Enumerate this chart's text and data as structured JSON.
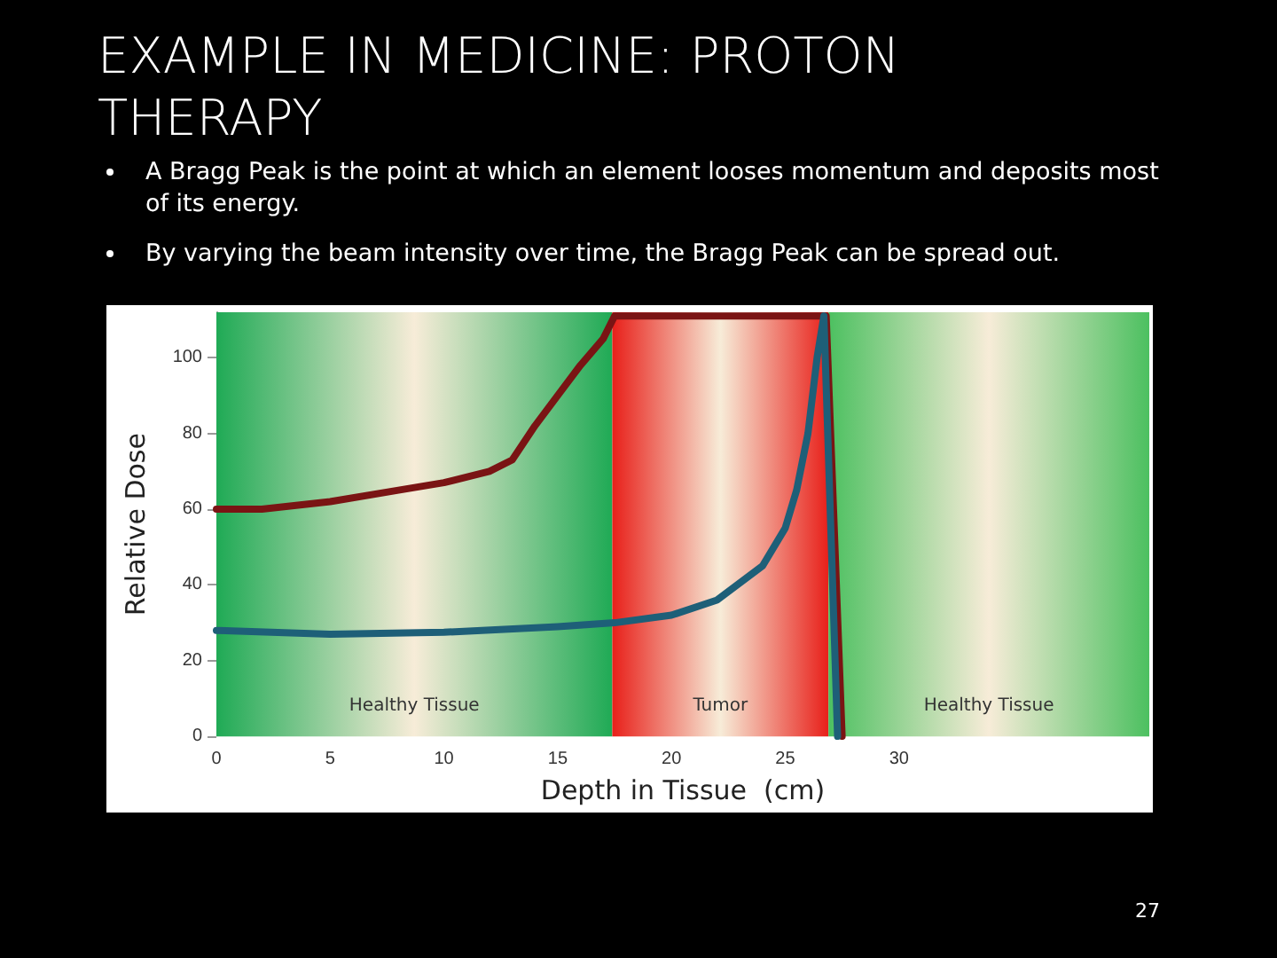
{
  "chart_data": {
    "type": "line",
    "title": "EXAMPLE IN MEDICINE: PROTON THERAPY",
    "annotations": [
      "A Bragg Peak is the point at which an element looses momentum and deposits most of its energy.",
      "By varying the beam intensity over time, the Bragg Peak can be spread out.",
      "27"
    ],
    "xlabel": "Depth in Tissue  (cm)",
    "ylabel": "Relative Dose",
    "xlim": [
      0,
      41
    ],
    "ylim": [
      0,
      112
    ],
    "xticks": [
      0,
      5,
      10,
      15,
      20,
      25,
      30
    ],
    "yticks": [
      0,
      20,
      40,
      60,
      80,
      100
    ],
    "grid": false,
    "marker": "none",
    "line_style": "solid",
    "bands": [
      {
        "axis": "x",
        "from": 0,
        "to": 17.4,
        "label": "Healthy Tissue",
        "color": "#1faa55"
      },
      {
        "axis": "x",
        "from": 17.4,
        "to": 26.9,
        "label": "Tumor",
        "color": "#e8201a"
      },
      {
        "axis": "x",
        "from": 26.9,
        "to": 41,
        "label": "Healthy Tissue",
        "color": "#4cc060"
      }
    ],
    "series": [
      {
        "color": "#7a1414",
        "x": [
          0,
          2,
          5,
          8,
          10,
          12,
          13,
          14,
          15,
          16,
          17,
          17.5,
          18,
          22,
          26,
          26.8,
          27.5
        ],
        "values": [
          60,
          60,
          62,
          65,
          67,
          70,
          73,
          82,
          90,
          98,
          105,
          111,
          111,
          111,
          111,
          111,
          0
        ]
      },
      {
        "color": "#1e5f78",
        "x": [
          0,
          5,
          10,
          15,
          17.5,
          20,
          22,
          24,
          25,
          25.5,
          26,
          26.4,
          26.7,
          27.3
        ],
        "values": [
          28,
          27,
          27.5,
          29,
          30,
          32,
          36,
          45,
          55,
          65,
          80,
          100,
          111,
          0
        ]
      }
    ]
  }
}
